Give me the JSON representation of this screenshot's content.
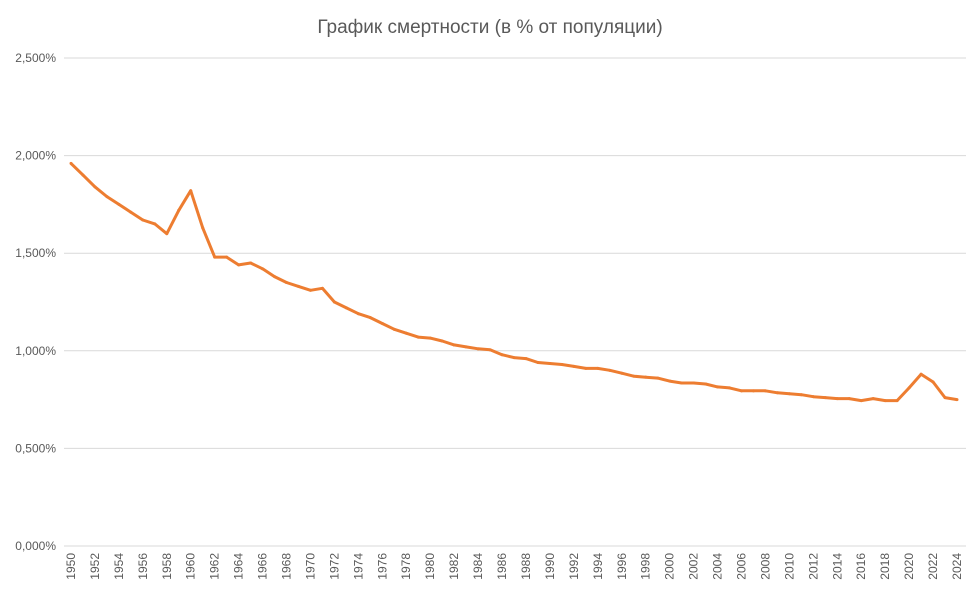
{
  "chart_data": {
    "type": "line",
    "title": "График смертности (в % от популяции)",
    "xlabel": "",
    "ylabel": "",
    "ylim": [
      0,
      2.5
    ],
    "y_ticks": [
      "0,000%",
      "0,500%",
      "1,000%",
      "1,500%",
      "2,000%",
      "2,500%"
    ],
    "y_tick_values": [
      0,
      0.5,
      1.0,
      1.5,
      2.0,
      2.5
    ],
    "grid": "horizontal",
    "legend": "none",
    "line_color": "#ED7D31",
    "x": [
      1950,
      1951,
      1952,
      1953,
      1954,
      1955,
      1956,
      1957,
      1958,
      1959,
      1960,
      1961,
      1962,
      1963,
      1964,
      1965,
      1966,
      1967,
      1968,
      1969,
      1970,
      1971,
      1972,
      1973,
      1974,
      1975,
      1976,
      1977,
      1978,
      1979,
      1980,
      1981,
      1982,
      1983,
      1984,
      1985,
      1986,
      1987,
      1988,
      1989,
      1990,
      1991,
      1992,
      1993,
      1994,
      1995,
      1996,
      1997,
      1998,
      1999,
      2000,
      2001,
      2002,
      2003,
      2004,
      2005,
      2006,
      2007,
      2008,
      2009,
      2010,
      2011,
      2012,
      2013,
      2014,
      2015,
      2016,
      2017,
      2018,
      2019,
      2020,
      2021,
      2022,
      2023,
      2024
    ],
    "x_tick_labels": [
      "1950",
      "1952",
      "1954",
      "1956",
      "1958",
      "1960",
      "1962",
      "1964",
      "1966",
      "1968",
      "1970",
      "1972",
      "1974",
      "1976",
      "1978",
      "1980",
      "1982",
      "1984",
      "1986",
      "1988",
      "1990",
      "1992",
      "1994",
      "1996",
      "1998",
      "2000",
      "2002",
      "2004",
      "2006",
      "2008",
      "2010",
      "2012",
      "2014",
      "2016",
      "2018",
      "2020",
      "2022",
      "2024"
    ],
    "values": [
      1.96,
      1.9,
      1.84,
      1.79,
      1.75,
      1.71,
      1.67,
      1.65,
      1.6,
      1.72,
      1.82,
      1.63,
      1.48,
      1.48,
      1.44,
      1.45,
      1.42,
      1.38,
      1.35,
      1.33,
      1.31,
      1.32,
      1.25,
      1.22,
      1.19,
      1.17,
      1.14,
      1.11,
      1.09,
      1.07,
      1.065,
      1.05,
      1.03,
      1.02,
      1.01,
      1.005,
      0.98,
      0.965,
      0.96,
      0.94,
      0.935,
      0.93,
      0.92,
      0.91,
      0.91,
      0.9,
      0.885,
      0.87,
      0.865,
      0.86,
      0.845,
      0.835,
      0.835,
      0.83,
      0.815,
      0.81,
      0.795,
      0.795,
      0.795,
      0.785,
      0.78,
      0.775,
      0.765,
      0.76,
      0.755,
      0.755,
      0.745,
      0.755,
      0.745,
      0.745,
      0.81,
      0.88,
      0.84,
      0.76,
      0.75
    ]
  }
}
